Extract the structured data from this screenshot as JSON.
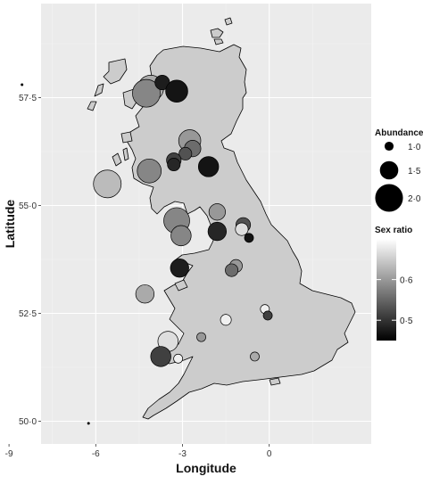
{
  "chart_data": {
    "type": "scatter",
    "title": "",
    "xlabel": "Longitude",
    "ylabel": "Latitude",
    "xlim": [
      -9.0,
      3.0
    ],
    "ylim": [
      49.5,
      59.0
    ],
    "grid": true,
    "xticks": [
      -9,
      -6,
      -3,
      0
    ],
    "xtick_labels": [
      "-9",
      "-6",
      "-3",
      "0"
    ],
    "yticks": [
      50.0,
      52.5,
      55.0,
      57.5
    ],
    "ytick_labels": [
      "50·0",
      "52·5",
      "55·0",
      "57·5"
    ],
    "legend_position": "right",
    "size_legend": {
      "title": "Abundance",
      "values": [
        1.0,
        1.5,
        2.0
      ],
      "labels": [
        "1·0",
        "1·5",
        "2·0"
      ]
    },
    "color_legend": {
      "title": "Sex ratio",
      "ticks": [
        0.5,
        0.6
      ],
      "labels": [
        "0·5",
        "0·6"
      ],
      "range": [
        0.45,
        0.7
      ],
      "low_color": "#000000",
      "high_color": "#ffffff"
    },
    "map_fill": "#cccccc",
    "panel_background": "#ebebeb",
    "points": [
      {
        "lon": -4.1,
        "lat": 57.72,
        "abundance": 1.9,
        "sex_ratio": 0.62
      },
      {
        "lon": -4.25,
        "lat": 57.6,
        "abundance": 2.0,
        "sex_ratio": 0.58
      },
      {
        "lon": -3.7,
        "lat": 57.85,
        "abundance": 1.3,
        "sex_ratio": 0.46
      },
      {
        "lon": -3.2,
        "lat": 57.65,
        "abundance": 1.7,
        "sex_ratio": 0.45
      },
      {
        "lon": -2.75,
        "lat": 56.5,
        "abundance": 1.7,
        "sex_ratio": 0.6
      },
      {
        "lon": -2.65,
        "lat": 56.32,
        "abundance": 1.4,
        "sex_ratio": 0.55
      },
      {
        "lon": -2.9,
        "lat": 56.2,
        "abundance": 1.2,
        "sex_ratio": 0.52
      },
      {
        "lon": -3.3,
        "lat": 56.05,
        "abundance": 1.3,
        "sex_ratio": 0.5
      },
      {
        "lon": -3.3,
        "lat": 55.95,
        "abundance": 1.2,
        "sex_ratio": 0.47
      },
      {
        "lon": -2.1,
        "lat": 55.9,
        "abundance": 1.6,
        "sex_ratio": 0.45
      },
      {
        "lon": -4.15,
        "lat": 55.8,
        "abundance": 1.8,
        "sex_ratio": 0.58
      },
      {
        "lon": -5.6,
        "lat": 55.5,
        "abundance": 2.0,
        "sex_ratio": 0.64
      },
      {
        "lon": -1.8,
        "lat": 54.85,
        "abundance": 1.4,
        "sex_ratio": 0.6
      },
      {
        "lon": -3.2,
        "lat": 54.65,
        "abundance": 1.9,
        "sex_ratio": 0.58
      },
      {
        "lon": -0.9,
        "lat": 54.55,
        "abundance": 1.3,
        "sex_ratio": 0.52
      },
      {
        "lon": -0.95,
        "lat": 54.45,
        "abundance": 1.2,
        "sex_ratio": 0.68
      },
      {
        "lon": -1.8,
        "lat": 54.4,
        "abundance": 1.5,
        "sex_ratio": 0.47
      },
      {
        "lon": -3.05,
        "lat": 54.3,
        "abundance": 1.6,
        "sex_ratio": 0.58
      },
      {
        "lon": -0.7,
        "lat": 54.25,
        "abundance": 1.0,
        "sex_ratio": 0.45
      },
      {
        "lon": -1.15,
        "lat": 53.6,
        "abundance": 1.2,
        "sex_ratio": 0.6
      },
      {
        "lon": -1.3,
        "lat": 53.5,
        "abundance": 1.2,
        "sex_ratio": 0.55
      },
      {
        "lon": -3.1,
        "lat": 53.55,
        "abundance": 1.5,
        "sex_ratio": 0.46
      },
      {
        "lon": -4.3,
        "lat": 52.95,
        "abundance": 1.5,
        "sex_ratio": 0.62
      },
      {
        "lon": -0.15,
        "lat": 52.6,
        "abundance": 1.0,
        "sex_ratio": 0.7
      },
      {
        "lon": -0.05,
        "lat": 52.45,
        "abundance": 1.0,
        "sex_ratio": 0.5
      },
      {
        "lon": -1.5,
        "lat": 52.35,
        "abundance": 1.1,
        "sex_ratio": 0.7
      },
      {
        "lon": -2.35,
        "lat": 51.95,
        "abundance": 1.0,
        "sex_ratio": 0.6
      },
      {
        "lon": -3.5,
        "lat": 51.85,
        "abundance": 1.6,
        "sex_ratio": 0.68
      },
      {
        "lon": -3.75,
        "lat": 51.5,
        "abundance": 1.6,
        "sex_ratio": 0.5
      },
      {
        "lon": -3.15,
        "lat": 51.45,
        "abundance": 1.0,
        "sex_ratio": 0.7
      },
      {
        "lon": -0.5,
        "lat": 51.5,
        "abundance": 1.0,
        "sex_ratio": 0.62
      }
    ],
    "stray_dots": [
      {
        "lon": -8.55,
        "lat": 57.8
      },
      {
        "lon": -6.25,
        "lat": 49.95
      }
    ]
  }
}
